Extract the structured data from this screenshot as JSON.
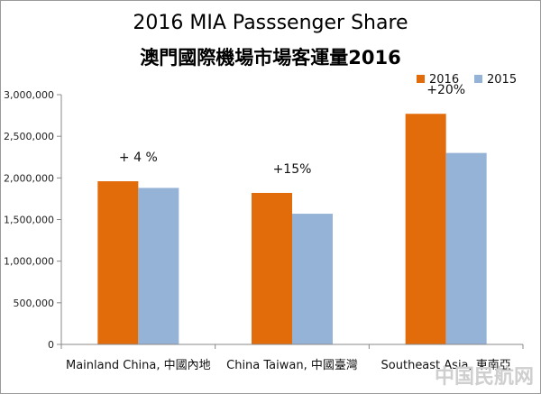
{
  "chart_data": {
    "type": "bar",
    "title": "2016 MIA Passsenger Share",
    "subtitle": "澳門國際機場市場客運量2016",
    "categories": [
      "Mainland China, 中國內地",
      "China Taiwan, 中國臺灣",
      "Southeast Asia, 東南亞"
    ],
    "series": [
      {
        "name": "2016",
        "color": "#E26B0A",
        "values": [
          1960000,
          1820000,
          2770000
        ]
      },
      {
        "name": "2015",
        "color": "#95B3D7",
        "values": [
          1880000,
          1570000,
          2300000
        ]
      }
    ],
    "annotations": [
      "+ 4 %",
      "+15%",
      "+20%"
    ],
    "y_ticks": [
      "0",
      "500,000",
      "1,000,000",
      "1,500,000",
      "2,000,000",
      "2,500,000",
      "3,000,000"
    ],
    "ylim": [
      0,
      3000000
    ],
    "legend_position": "top-right",
    "grid": false,
    "xlabel": "",
    "ylabel": ""
  },
  "watermark": "中国民航网"
}
